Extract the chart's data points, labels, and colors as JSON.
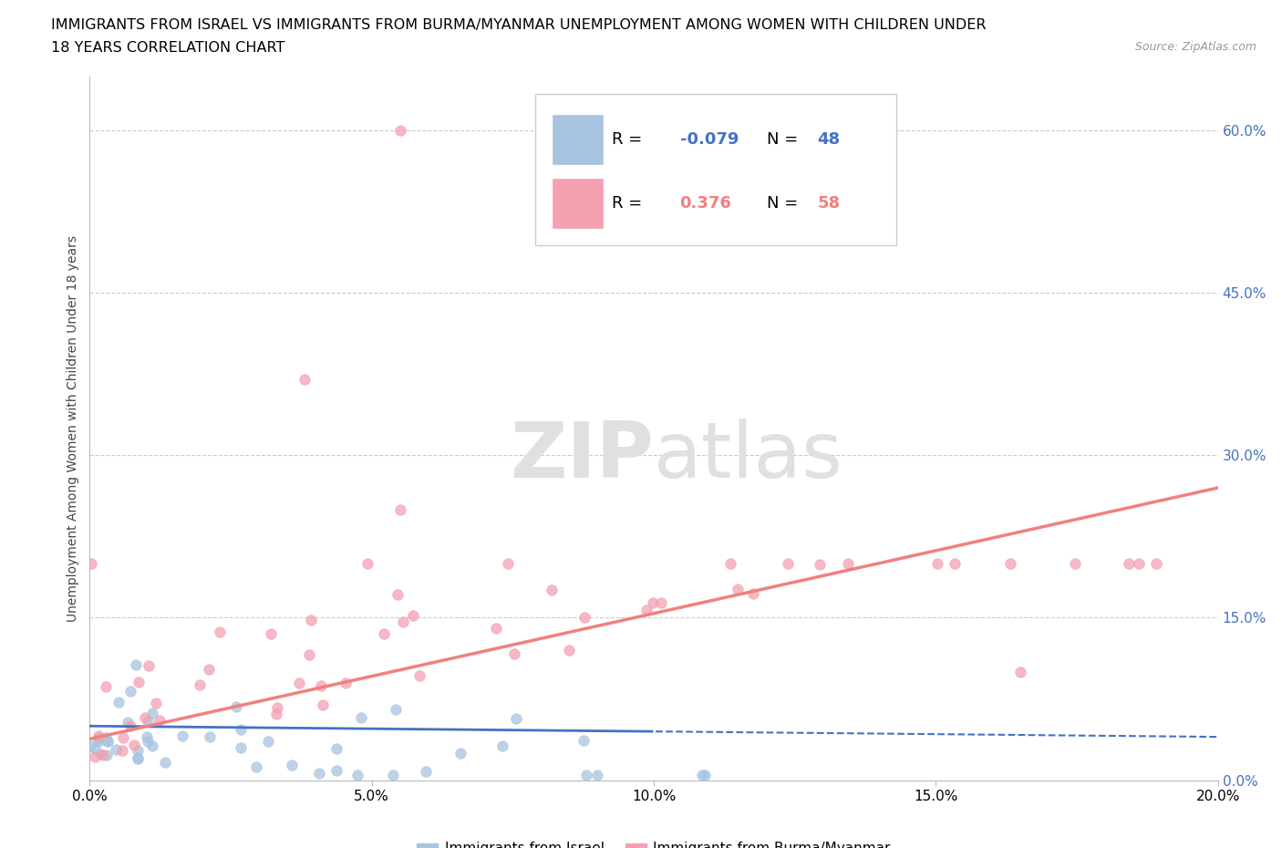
{
  "title_line1": "IMMIGRANTS FROM ISRAEL VS IMMIGRANTS FROM BURMA/MYANMAR UNEMPLOYMENT AMONG WOMEN WITH CHILDREN UNDER",
  "title_line2": "18 YEARS CORRELATION CHART",
  "source_text": "Source: ZipAtlas.com",
  "ylabel": "Unemployment Among Women with Children Under 18 years",
  "xlim": [
    0.0,
    0.2
  ],
  "ylim": [
    0.0,
    0.65
  ],
  "xticklabels": [
    "0.0%",
    "5.0%",
    "10.0%",
    "15.0%",
    "20.0%"
  ],
  "xtick_vals": [
    0.0,
    0.05,
    0.1,
    0.15,
    0.2
  ],
  "ytick_vals": [
    0.0,
    0.15,
    0.3,
    0.45,
    0.6
  ],
  "yticklabels_right": [
    "0.0%",
    "15.0%",
    "30.0%",
    "45.0%",
    "60.0%"
  ],
  "legend_israel_R": "-0.079",
  "legend_israel_N": "48",
  "legend_burma_R": "0.376",
  "legend_burma_N": "58",
  "israel_color": "#a8c4e0",
  "burma_color": "#f4a0b0",
  "israel_line_color": "#4472c4",
  "burma_line_color": "#f08080",
  "background_color": "#ffffff",
  "grid_color": "#cccccc",
  "title_fontsize": 11.5,
  "axis_fontsize": 11,
  "legend_fontsize": 14
}
